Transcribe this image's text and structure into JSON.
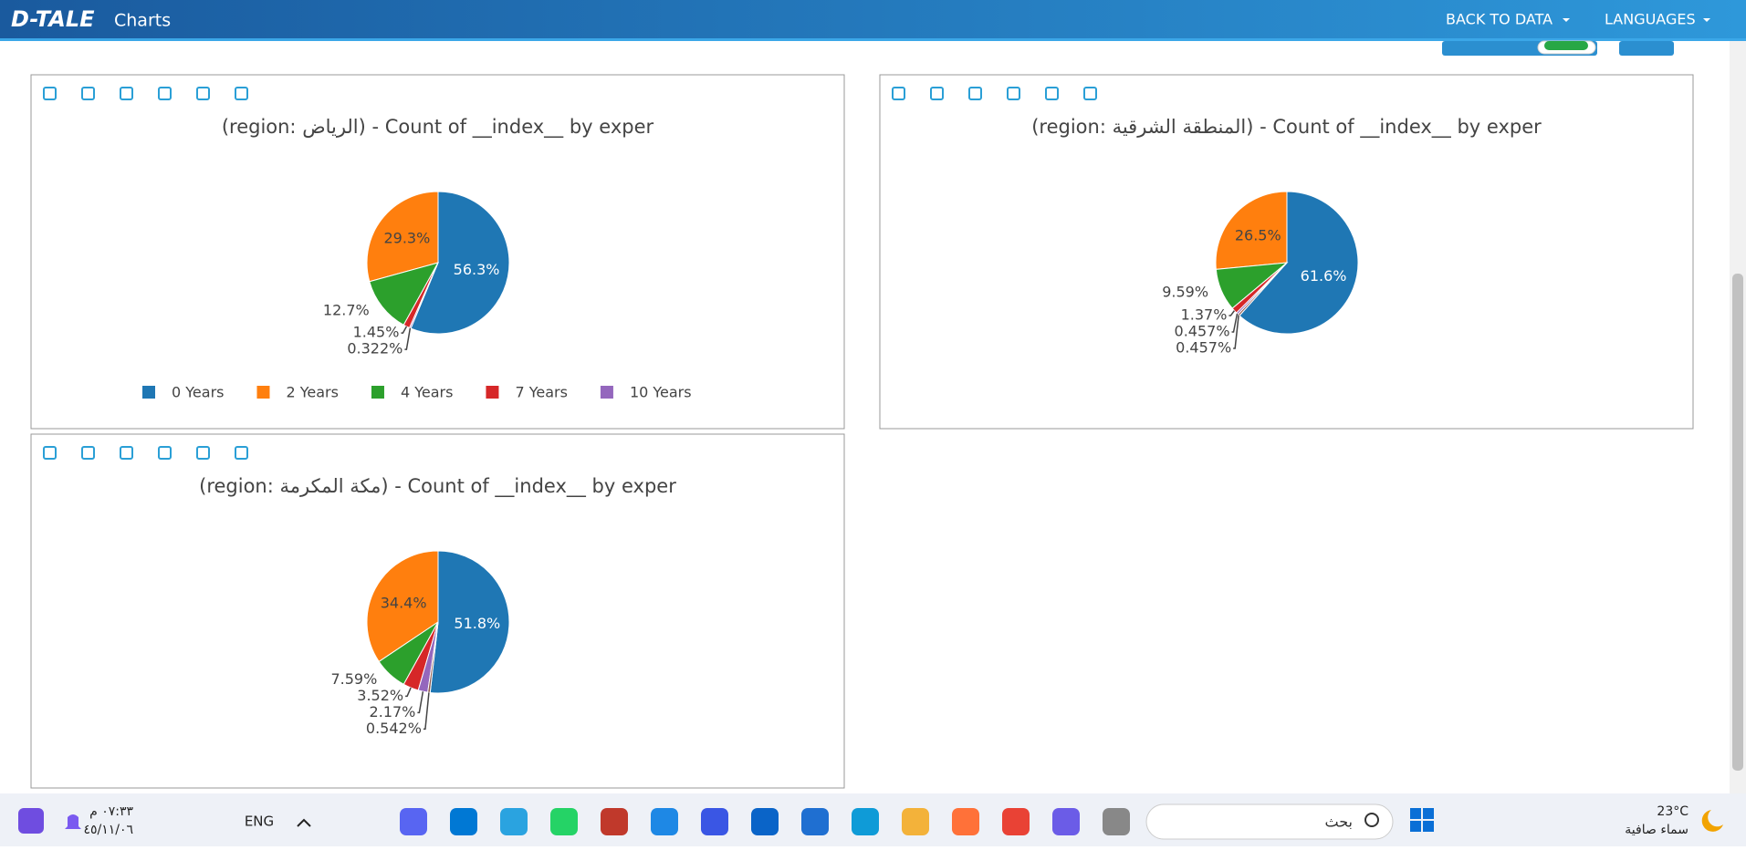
{
  "header": {
    "logo": "D-TALE",
    "title": "Charts",
    "back_to_data": "BACK TO DATA",
    "languages": "LANGUAGES"
  },
  "chart_data": [
    {
      "type": "pie",
      "title": "(region: الرياض) - Count of __index__ by exper",
      "categories": [
        "0 Years",
        "2 Years",
        "4 Years",
        "7 Years",
        "10 Years"
      ],
      "values": [
        56.3,
        29.3,
        12.7,
        1.45,
        0.322
      ],
      "value_labels": [
        "56.3%",
        "29.3%",
        "12.7%",
        "1.45%",
        "0.322%"
      ],
      "colors": [
        "#1f77b4",
        "#ff7f0e",
        "#2ca02c",
        "#d62728",
        "#9467bd"
      ],
      "legend": true
    },
    {
      "type": "pie",
      "title": "(region: المنطقة الشرقية) - Count of __index__ by exper",
      "categories": [
        null,
        null,
        null,
        null,
        null,
        null
      ],
      "values": [
        61.6,
        26.5,
        9.59,
        1.37,
        0.457,
        0.457
      ],
      "value_labels": [
        "61.6%",
        "26.5%",
        "9.59%",
        "1.37%",
        "0.457%",
        "0.457%"
      ],
      "colors": [
        "#1f77b4",
        "#ff7f0e",
        "#2ca02c",
        "#d62728",
        "#9467bd",
        "#8c564b"
      ],
      "legend": false
    },
    {
      "type": "pie",
      "title": "(region: مكة المكرمة) - Count of __index__ by exper",
      "categories": [
        null,
        null,
        null,
        null,
        null,
        null
      ],
      "values": [
        51.8,
        34.4,
        7.59,
        3.52,
        2.17,
        0.542
      ],
      "value_labels": [
        "51.8%",
        "34.4%",
        "7.59%",
        "3.52%",
        "2.17%",
        "0.542%"
      ],
      "colors": [
        "#1f77b4",
        "#ff7f0e",
        "#2ca02c",
        "#d62728",
        "#9467bd",
        "#8c564b"
      ],
      "legend": false
    }
  ],
  "taskbar": {
    "language": "ENG",
    "time": "٠٧:٣٣ م",
    "date": "٤٥/١١/٠٦",
    "search": "بحث",
    "temperature": "23°C",
    "weather": "سماء صافية"
  }
}
